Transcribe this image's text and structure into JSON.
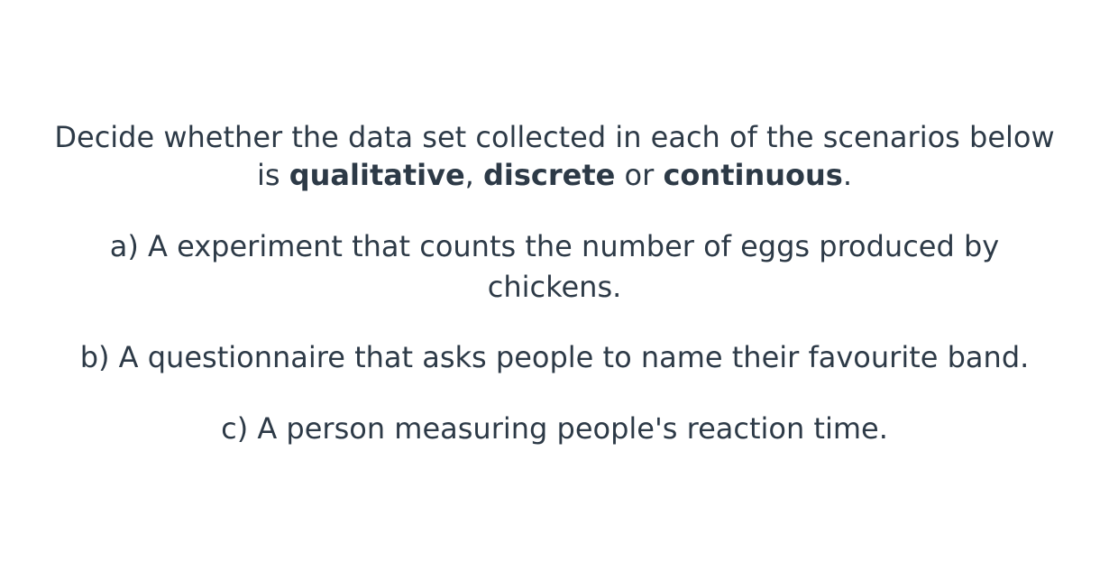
{
  "instruction": {
    "line1": "Decide whether the data set collected in each of the scenarios below",
    "line2_prefix": "is ",
    "term_qualitative": "qualitative",
    "sep1": ", ",
    "term_discrete": "discrete",
    "sep2": " or ",
    "term_continuous": "continuous",
    "line2_suffix": "."
  },
  "questions": [
    {
      "label": "a)",
      "line1": "a) A experiment that counts the number of eggs produced by",
      "line2": "chickens."
    },
    {
      "label": "b)",
      "line1": "b) A questionnaire that asks people to name their favourite band."
    },
    {
      "label": "c)",
      "line1": "c) A person measuring people's reaction time."
    }
  ]
}
